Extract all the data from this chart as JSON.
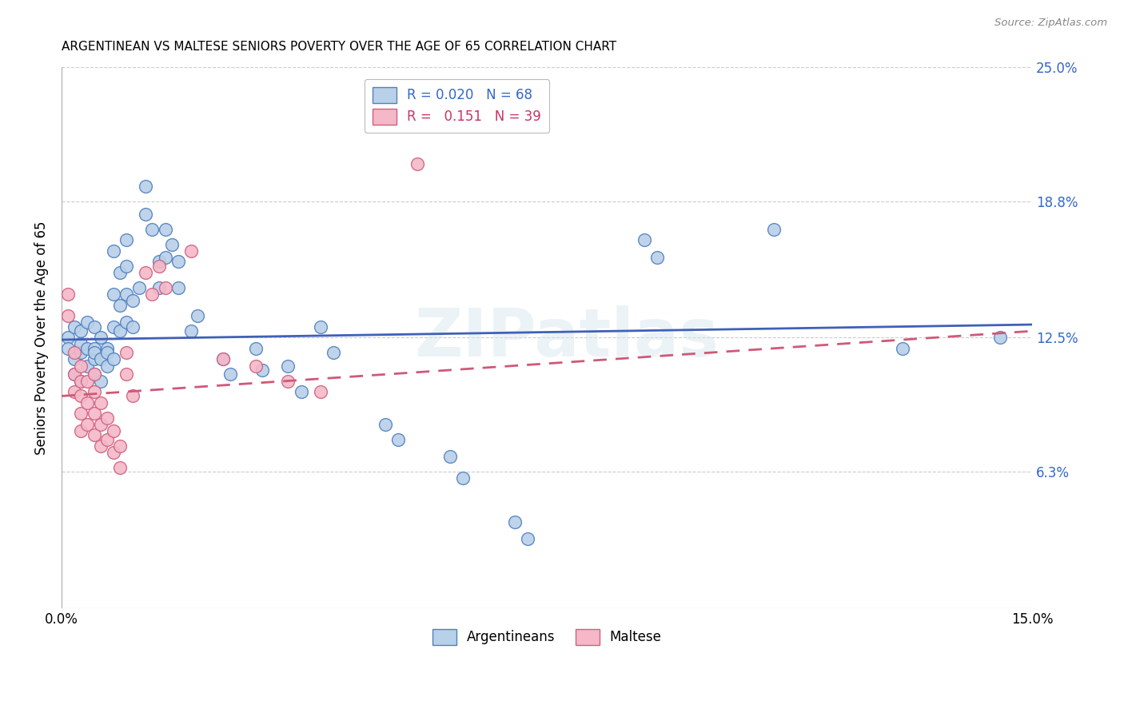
{
  "title": "ARGENTINEAN VS MALTESE SENIORS POVERTY OVER THE AGE OF 65 CORRELATION CHART",
  "source": "Source: ZipAtlas.com",
  "ylabel": "Seniors Poverty Over the Age of 65",
  "xlim": [
    0.0,
    0.15
  ],
  "ylim": [
    0.0,
    0.25
  ],
  "ytick_positions": [
    0.063,
    0.125,
    0.188,
    0.25
  ],
  "ytick_labels": [
    "6.3%",
    "12.5%",
    "18.8%",
    "25.0%"
  ],
  "watermark": "ZIPatlas",
  "argentineans_color": "#b8d0e8",
  "maltese_color": "#f4b8c8",
  "argentineans_edge_color": "#5080c0",
  "maltese_edge_color": "#d06080",
  "argentineans_line_color": "#4060b8",
  "maltese_line_color": "#d05878",
  "maltese_line_style": "--",
  "R_arg": 0.02,
  "N_arg": 68,
  "R_malt": 0.151,
  "N_malt": 39,
  "argentineans_x": [
    0.001,
    0.001,
    0.002,
    0.002,
    0.002,
    0.003,
    0.003,
    0.003,
    0.003,
    0.004,
    0.004,
    0.004,
    0.005,
    0.005,
    0.005,
    0.005,
    0.005,
    0.006,
    0.006,
    0.006,
    0.007,
    0.007,
    0.007,
    0.008,
    0.008,
    0.008,
    0.008,
    0.009,
    0.009,
    0.009,
    0.01,
    0.01,
    0.01,
    0.01,
    0.011,
    0.011,
    0.012,
    0.013,
    0.013,
    0.014,
    0.015,
    0.015,
    0.016,
    0.016,
    0.017,
    0.018,
    0.018,
    0.02,
    0.021,
    0.025,
    0.026,
    0.03,
    0.031,
    0.035,
    0.037,
    0.04,
    0.042,
    0.05,
    0.052,
    0.06,
    0.062,
    0.07,
    0.072,
    0.09,
    0.092,
    0.11,
    0.13,
    0.145
  ],
  "argentineans_y": [
    0.125,
    0.12,
    0.115,
    0.108,
    0.13,
    0.118,
    0.128,
    0.105,
    0.122,
    0.112,
    0.12,
    0.132,
    0.115,
    0.12,
    0.108,
    0.13,
    0.118,
    0.125,
    0.115,
    0.105,
    0.12,
    0.112,
    0.118,
    0.165,
    0.145,
    0.13,
    0.115,
    0.155,
    0.14,
    0.128,
    0.17,
    0.158,
    0.145,
    0.132,
    0.142,
    0.13,
    0.148,
    0.195,
    0.182,
    0.175,
    0.16,
    0.148,
    0.175,
    0.162,
    0.168,
    0.16,
    0.148,
    0.128,
    0.135,
    0.115,
    0.108,
    0.12,
    0.11,
    0.112,
    0.1,
    0.13,
    0.118,
    0.085,
    0.078,
    0.07,
    0.06,
    0.04,
    0.032,
    0.17,
    0.162,
    0.175,
    0.12,
    0.125
  ],
  "maltese_x": [
    0.001,
    0.001,
    0.002,
    0.002,
    0.002,
    0.003,
    0.003,
    0.003,
    0.003,
    0.003,
    0.004,
    0.004,
    0.004,
    0.005,
    0.005,
    0.005,
    0.005,
    0.006,
    0.006,
    0.006,
    0.007,
    0.007,
    0.008,
    0.008,
    0.009,
    0.009,
    0.01,
    0.01,
    0.011,
    0.013,
    0.014,
    0.015,
    0.016,
    0.02,
    0.025,
    0.03,
    0.035,
    0.04,
    0.055
  ],
  "maltese_y": [
    0.145,
    0.135,
    0.118,
    0.108,
    0.1,
    0.112,
    0.105,
    0.098,
    0.09,
    0.082,
    0.105,
    0.095,
    0.085,
    0.108,
    0.1,
    0.09,
    0.08,
    0.095,
    0.085,
    0.075,
    0.088,
    0.078,
    0.082,
    0.072,
    0.075,
    0.065,
    0.118,
    0.108,
    0.098,
    0.155,
    0.145,
    0.158,
    0.148,
    0.165,
    0.115,
    0.112,
    0.105,
    0.1,
    0.205
  ]
}
